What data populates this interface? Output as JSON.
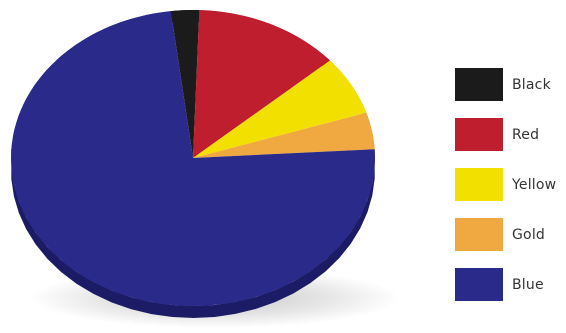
{
  "chart_data": {
    "type": "pie",
    "categories": [
      "Black",
      "Red",
      "Yellow",
      "Gold",
      "Blue"
    ],
    "values": [
      2.5,
      13,
      6.5,
      4,
      74
    ],
    "colors": [
      "#1b1b1b",
      "#be1e2d",
      "#f2e100",
      "#f0a840",
      "#2a2a8a"
    ],
    "side_colors": [
      "#0f0f0f",
      "#861620",
      "#b8a800",
      "#b87c28",
      "#1c1c66"
    ],
    "title": "",
    "legend_position": "right",
    "style": "3d-tilted"
  },
  "legend": {
    "items": [
      {
        "label": "Black",
        "color": "#1b1b1b"
      },
      {
        "label": "Red",
        "color": "#be1e2d"
      },
      {
        "label": "Yellow",
        "color": "#f2e100"
      },
      {
        "label": "Gold",
        "color": "#f0a840"
      },
      {
        "label": "Blue",
        "color": "#2a2a8a"
      }
    ]
  }
}
